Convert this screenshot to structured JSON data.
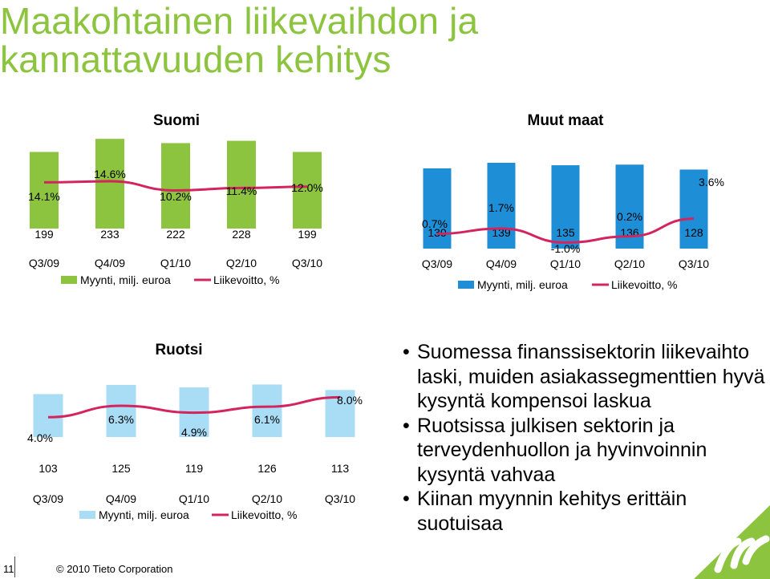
{
  "page": {
    "title_line1": "Maakohtainen liikevaihdon ja",
    "title_line2": "kannattavuuden kehitys",
    "page_number": "11",
    "copyright": "© 2010 Tieto Corporation",
    "bullets": [
      "Suomessa finanssisektorin liikevaihto laski, muiden asiakassegmenttien hyvä kysyntä kompensoi laskua",
      "Ruotsissa julkisen sektorin ja terveydenhuollon ja hyvinvoinnin kysyntä vahvaa",
      "Kiinan myynnin kehitys erittäin suotuisaa"
    ]
  },
  "chart_data": [
    {
      "type": "bar",
      "title": "Suomi",
      "categories": [
        "Q3/09",
        "Q4/09",
        "Q1/10",
        "Q2/10",
        "Q3/10"
      ],
      "series": [
        {
          "name": "Myynti, milj. euroa",
          "kind": "bar",
          "color": "#8cc43f",
          "values": [
            199,
            233,
            222,
            228,
            199
          ],
          "labels": [
            "199",
            "233",
            "222",
            "228",
            "199"
          ]
        },
        {
          "name": "Liikevoitto, %",
          "kind": "line",
          "color": "#d4245e",
          "values": [
            14.1,
            14.6,
            10.2,
            11.4,
            12.0
          ],
          "labels": [
            "14.1%",
            "14.6%",
            "10.2%",
            "11.4%",
            "12.0%"
          ]
        }
      ],
      "legend_position": "bottom"
    },
    {
      "type": "bar",
      "title": "Muut maat",
      "categories": [
        "Q3/09",
        "Q4/09",
        "Q1/10",
        "Q2/10",
        "Q3/10"
      ],
      "series": [
        {
          "name": "Myynti, milj. euroa",
          "kind": "bar",
          "color": "#1e8fd6",
          "values": [
            130,
            139,
            135,
            136,
            128
          ],
          "labels": [
            "130",
            "139",
            "135",
            "136",
            "128"
          ]
        },
        {
          "name": "Liikevoitto, %",
          "kind": "line",
          "color": "#d4245e",
          "values": [
            0.7,
            1.7,
            -1.0,
            0.2,
            3.6
          ],
          "labels": [
            "0.7%",
            "1.7%",
            "-1.0%",
            "0.2%",
            "3.6%"
          ]
        }
      ],
      "legend_position": "bottom"
    },
    {
      "type": "bar",
      "title": "Ruotsi",
      "categories": [
        "Q3/09",
        "Q4/09",
        "Q1/10",
        "Q2/10",
        "Q3/10"
      ],
      "series": [
        {
          "name": "Myynti, milj. euroa",
          "kind": "bar",
          "color": "#a9dcf5",
          "values": [
            103,
            125,
            119,
            126,
            113
          ],
          "labels": [
            "103",
            "125",
            "119",
            "126",
            "113"
          ]
        },
        {
          "name": "Liikevoitto, %",
          "kind": "line",
          "color": "#d4245e",
          "values": [
            4.0,
            6.3,
            4.9,
            6.1,
            8.0
          ],
          "labels": [
            "4.0%",
            "6.3%",
            "4.9%",
            "6.1%",
            "8.0%"
          ]
        }
      ],
      "legend_position": "bottom"
    }
  ]
}
